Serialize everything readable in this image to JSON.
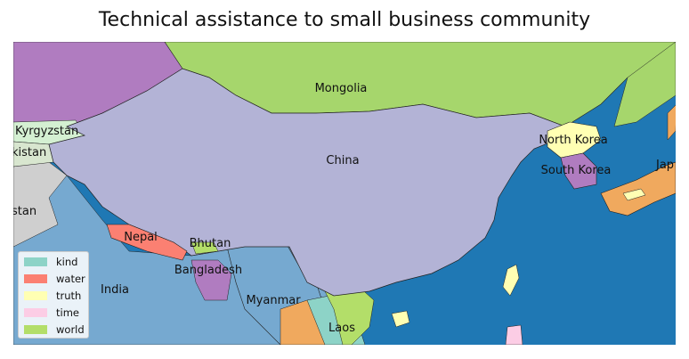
{
  "title": "Technical assistance to small business community",
  "countries": {
    "mongolia": "Mongolia",
    "kyrgyzstan": "Kyrgyzstan",
    "kistan": "kistan",
    "stan": "stan",
    "china": "China",
    "north_korea": "North Korea",
    "south_korea": "South Korea",
    "japan": "Jap",
    "nepal": "Nepal",
    "bhutan": "Bhutan",
    "bangladesh": "Bangladesh",
    "india": "India",
    "myanmar": "Myanmar",
    "laos": "Laos"
  },
  "legend": [
    {
      "label": "kind",
      "color": "#8dd3c7"
    },
    {
      "label": "water",
      "color": "#fb8072"
    },
    {
      "label": "truth",
      "color": "#ffffb3"
    },
    {
      "label": "time",
      "color": "#fccde5"
    },
    {
      "label": "world",
      "color": "#b3de69"
    }
  ],
  "colors": {
    "ocean": "#1f78b4",
    "china": "#b3b3d6",
    "mongolia": "#a6d66c",
    "purple": "#b07cc0",
    "india": "#76a9d0",
    "grey": "#cfcfcf",
    "orange": "#f0a95e"
  }
}
